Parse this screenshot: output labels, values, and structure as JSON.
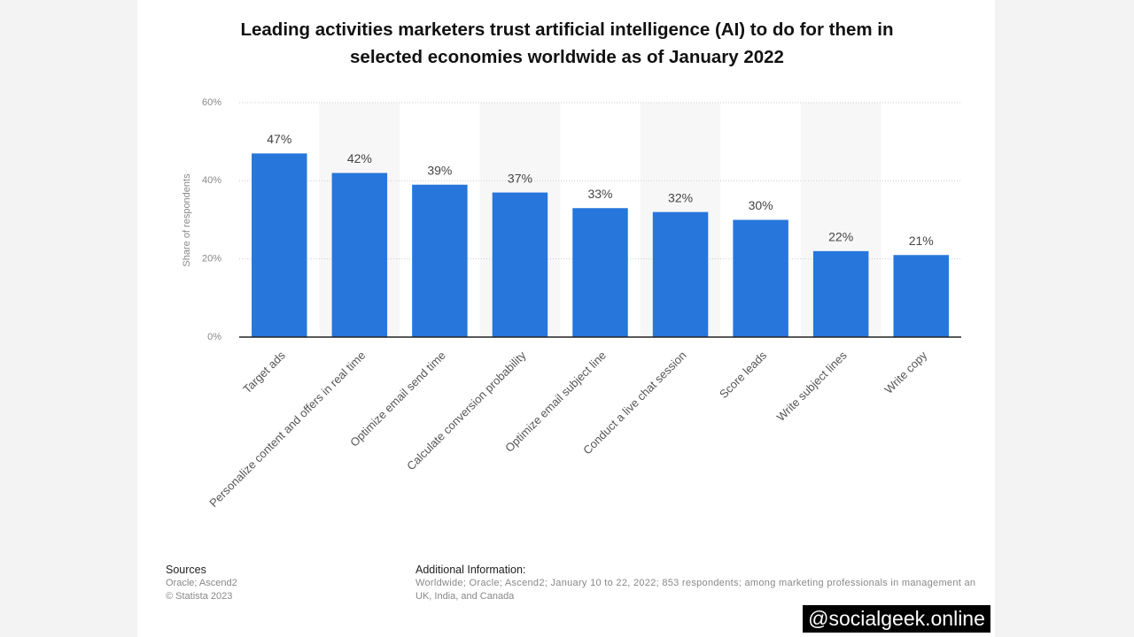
{
  "chart_data": {
    "type": "bar",
    "title": "Leading activities marketers trust artificial intelligence (AI) to do for them in selected economies worldwide as of January 2022",
    "y_label": "Share of respondents",
    "categories": [
      "Target ads",
      "Personalize content and offers in real time",
      "Optimize email send time",
      "Calculate conversion probability",
      "Optimize email subject line",
      "Conduct a live chat session",
      "Score leads",
      "Write subject lines",
      "Write copy"
    ],
    "values": [
      47,
      42,
      39,
      37,
      33,
      32,
      30,
      22,
      21
    ],
    "value_labels": [
      "47%",
      "42%",
      "39%",
      "37%",
      "33%",
      "32%",
      "30%",
      "22%",
      "21%"
    ],
    "color": "#2776db",
    "ylim": [
      0,
      60
    ],
    "yticks": [
      {
        "value": 0,
        "label": "0%"
      },
      {
        "value": 20,
        "label": "20%"
      },
      {
        "value": 40,
        "label": "40%"
      },
      {
        "value": 60,
        "label": "60%"
      }
    ],
    "grid": true
  },
  "sources": {
    "title": "Sources",
    "lines": [
      "Oracle; Ascend2",
      "© Statista 2023"
    ]
  },
  "additional_info": {
    "title": "Additional Information:",
    "lines": [
      "Worldwide; Oracle; Ascend2; January 10 to 22, 2022; 853 respondents; among marketing professionals in management an",
      "UK, India, and Canada"
    ]
  },
  "watermark": "@socialgeek.online"
}
